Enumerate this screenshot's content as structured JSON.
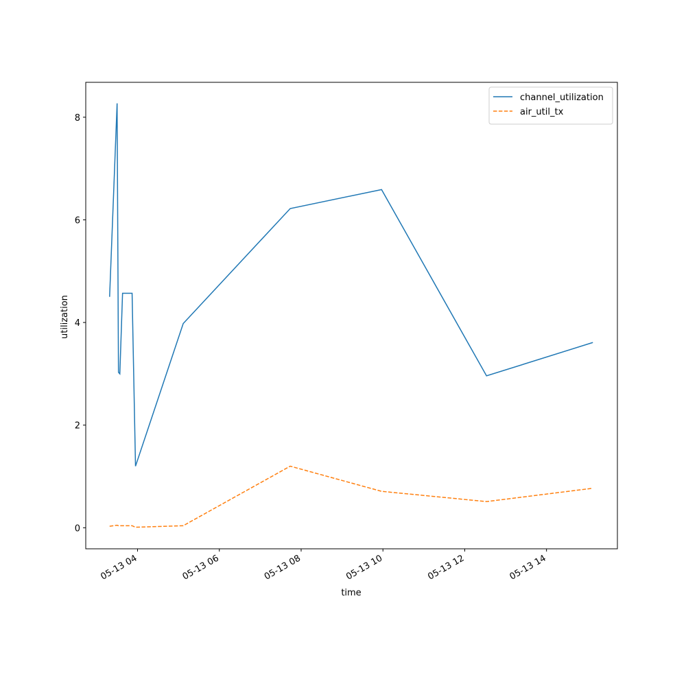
{
  "chart_data": {
    "type": "line",
    "x_label": "time",
    "y_label": "utilization",
    "x": [
      "05-13 03:19",
      "05-13 03:30",
      "05-13 03:32",
      "05-13 03:34",
      "05-13 03:38",
      "05-13 03:52",
      "05-13 03:57",
      "05-13 05:07",
      "05-13 07:44",
      "05-13 09:58",
      "05-13 12:32",
      "05-13 15:08"
    ],
    "series": [
      {
        "name": "channel_utilization",
        "color": "#1f77b4",
        "dash": false,
        "values": [
          4.5,
          8.27,
          3.03,
          3.0,
          4.57,
          4.57,
          1.2,
          3.98,
          6.22,
          6.59,
          2.96,
          3.61
        ]
      },
      {
        "name": "air_util_tx",
        "color": "#ff7f0e",
        "dash": true,
        "values": [
          0.03,
          0.05,
          0.04,
          0.04,
          0.04,
          0.04,
          0.01,
          0.04,
          1.2,
          0.71,
          0.51,
          0.77
        ]
      }
    ],
    "xlim": [
      "05-13 02:44",
      "05-13 15:44"
    ],
    "xticks": [
      {
        "value": "05-13 04:00",
        "label": "05-13 04"
      },
      {
        "value": "05-13 06:00",
        "label": "05-13 06"
      },
      {
        "value": "05-13 08:00",
        "label": "05-13 08"
      },
      {
        "value": "05-13 10:00",
        "label": "05-13 10"
      },
      {
        "value": "05-13 12:00",
        "label": "05-13 12"
      },
      {
        "value": "05-13 14:00",
        "label": "05-13 14"
      }
    ],
    "ylim": [
      -0.41,
      8.68
    ],
    "yticks": [
      0,
      2,
      4,
      6,
      8
    ],
    "legend": "upper-right"
  }
}
